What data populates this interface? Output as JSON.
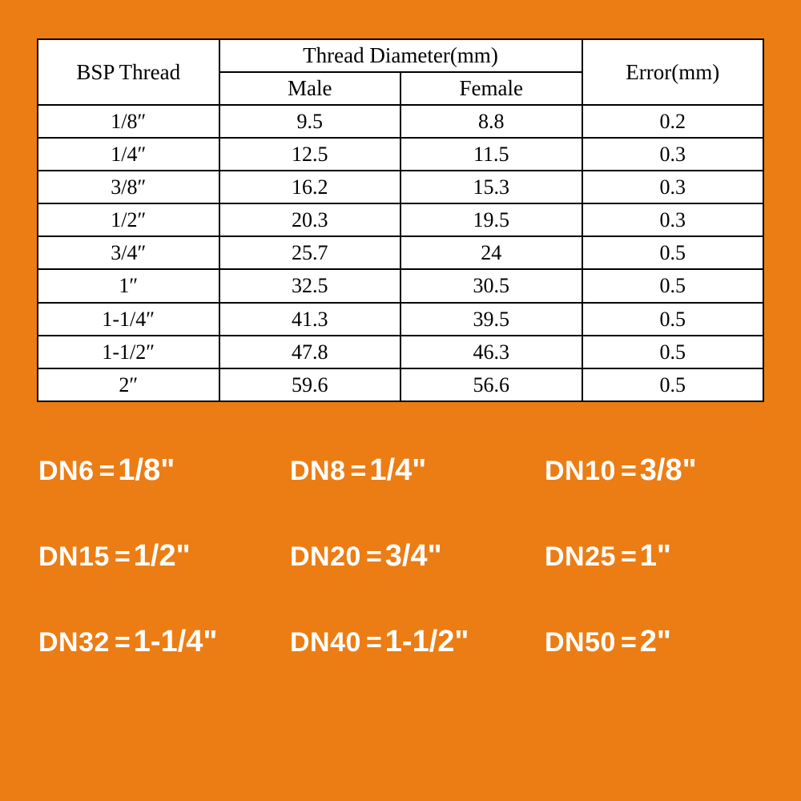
{
  "background_color": "#ec7d14",
  "table": {
    "background_color": "#ffffff",
    "border_color": "#000000",
    "text_color": "#000000",
    "header_fontsize": 27,
    "cell_fontsize": 26,
    "font_family": "SimSun, serif",
    "columns": {
      "bsp": {
        "label": "BSP Thread",
        "width_pct": 25
      },
      "group": {
        "label": "Thread Diameter(mm)"
      },
      "male": {
        "label": "Male",
        "width_pct": 25
      },
      "female": {
        "label": "Female",
        "width_pct": 25
      },
      "error": {
        "label": "Error(mm)",
        "width_pct": 25
      }
    },
    "rows": [
      {
        "bsp": "1/8″",
        "male": "9.5",
        "female": "8.8",
        "error": "0.2"
      },
      {
        "bsp": "1/4″",
        "male": "12.5",
        "female": "11.5",
        "error": "0.3"
      },
      {
        "bsp": "3/8″",
        "male": "16.2",
        "female": "15.3",
        "error": "0.3"
      },
      {
        "bsp": "1/2″",
        "male": "20.3",
        "female": "19.5",
        "error": "0.3"
      },
      {
        "bsp": "3/4″",
        "male": "25.7",
        "female": "24",
        "error": "0.5"
      },
      {
        "bsp": "1″",
        "male": "32.5",
        "female": "30.5",
        "error": "0.5"
      },
      {
        "bsp": "1-1/4″",
        "male": "41.3",
        "female": "39.5",
        "error": "0.5"
      },
      {
        "bsp": "1-1/2″",
        "male": "47.8",
        "female": "46.3",
        "error": "0.5"
      },
      {
        "bsp": "2″",
        "male": "59.6",
        "female": "56.6",
        "error": "0.5"
      }
    ]
  },
  "dn": {
    "text_color": "#ffffff",
    "font_family": "Arial, sans-serif",
    "dn_fontsize": 34,
    "val_fontsize": 38,
    "font_weight": "bold",
    "items": [
      {
        "dn": "DN6",
        "val": "1/8\""
      },
      {
        "dn": "DN8",
        "val": "1/4\""
      },
      {
        "dn": "DN10",
        "val": "3/8\""
      },
      {
        "dn": "DN15",
        "val": "1/2\""
      },
      {
        "dn": "DN20",
        "val": "3/4\""
      },
      {
        "dn": "DN25",
        "val": "1\""
      },
      {
        "dn": "DN32",
        "val": "1-1/4\""
      },
      {
        "dn": "DN40",
        "val": "1-1/2\""
      },
      {
        "dn": "DN50",
        "val": "2\""
      }
    ]
  }
}
